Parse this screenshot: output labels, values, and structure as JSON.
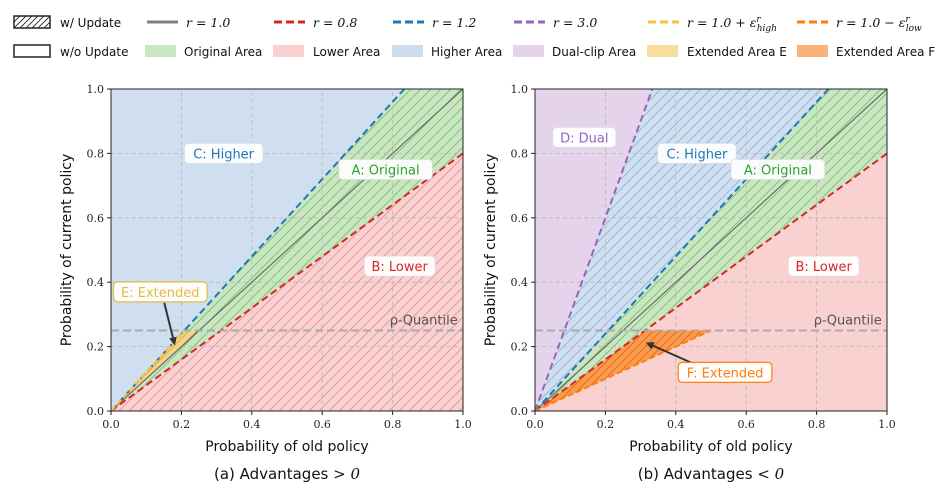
{
  "chart_data": {
    "type": "area",
    "legend": {
      "position": "top",
      "row1": [
        {
          "key": "w_update",
          "label": "w/ Update"
        },
        {
          "key": "r10",
          "label": "r = 1.0",
          "color": "#808080"
        },
        {
          "key": "r08",
          "label": "r = 0.8",
          "color": "#d62728"
        },
        {
          "key": "r12",
          "label": "r = 1.2",
          "color": "#1f77b4"
        },
        {
          "key": "r30",
          "label": "r = 3.0",
          "color": "#9467bd"
        },
        {
          "key": "rhigh",
          "label": "r = 1.0 + ε",
          "sup": "r",
          "sub": "high",
          "color": "#f5c342"
        },
        {
          "key": "rlow",
          "label": "r = 1.0 − ε",
          "sup": "r",
          "sub": "low",
          "color": "#ff7f0e"
        }
      ],
      "row2": [
        {
          "key": "wo_update",
          "label": "w/o Update"
        },
        {
          "key": "orig",
          "label": "Original Area",
          "color": "#c8e6c0"
        },
        {
          "key": "lower",
          "label": "Lower Area",
          "color": "#f9cfcf"
        },
        {
          "key": "higher",
          "label": "Higher Area",
          "color": "#cddcec"
        },
        {
          "key": "dual",
          "label": "Dual-clip Area",
          "color": "#e4d3ea"
        },
        {
          "key": "extE",
          "label": "Extended Area E",
          "color": "#f6df9a"
        },
        {
          "key": "extF",
          "label": "Extended Area F",
          "color": "#f9b27a"
        }
      ]
    },
    "panels": [
      {
        "title": "(a) Advantages > 0",
        "title_text": "(a) Advantages",
        "title_op": ">",
        "title_val": "0",
        "xlabel": "Probability of old policy",
        "ylabel": "Probability of current policy",
        "xlim": [
          0,
          1
        ],
        "ylim": [
          0,
          1
        ],
        "xticks": [
          0,
          0.2,
          0.4,
          0.6,
          0.8,
          1.0
        ],
        "yticks": [
          0,
          0.2,
          0.4,
          0.6,
          0.8,
          1.0
        ],
        "tick_labels": [
          "0.0",
          "0.2",
          "0.4",
          "0.6",
          "0.8",
          "1.0"
        ],
        "quantile_y": 0.25,
        "quantile_label": "ρ-Quantile",
        "lines": [
          {
            "r": 1.0,
            "style": "solid",
            "color": "#6b6b6b"
          },
          {
            "r": 1.2,
            "style": "dashed",
            "color": "#1f77b4"
          },
          {
            "r": 0.8,
            "style": "dashed",
            "color": "#d62728"
          }
        ],
        "regions": [
          {
            "id": "higher",
            "label": "C: Higher",
            "hatch": false,
            "label_pos": [
              0.32,
              0.8
            ],
            "label_color": "#1f77b4"
          },
          {
            "id": "original",
            "label": "A: Original",
            "hatch": true,
            "label_pos": [
              0.78,
              0.75
            ],
            "label_color": "#2ca02c"
          },
          {
            "id": "lower",
            "label": "B: Lower",
            "hatch": true,
            "label_pos": [
              0.82,
              0.45
            ],
            "label_color": "#d62728"
          },
          {
            "id": "extended",
            "label": "E: Extended",
            "hatch": true,
            "label_pos": [
              0.14,
              0.37
            ],
            "label_color": "#e8b93a",
            "arrow_to": [
              0.18,
              0.21
            ]
          }
        ],
        "extended_clip": {
          "r": 1.2,
          "y_max": 0.25
        }
      },
      {
        "title": "(b) Advantages < 0",
        "title_text": "(b) Advantages",
        "title_op": "<",
        "title_val": "0",
        "xlabel": "Probability of old policy",
        "ylabel": "Probability of current policy",
        "xlim": [
          0,
          1
        ],
        "ylim": [
          0,
          1
        ],
        "xticks": [
          0,
          0.2,
          0.4,
          0.6,
          0.8,
          1.0
        ],
        "yticks": [
          0,
          0.2,
          0.4,
          0.6,
          0.8,
          1.0
        ],
        "tick_labels": [
          "0.0",
          "0.2",
          "0.4",
          "0.6",
          "0.8",
          "1.0"
        ],
        "quantile_y": 0.25,
        "quantile_label": "ρ-Quantile",
        "lines": [
          {
            "r": 1.0,
            "style": "solid",
            "color": "#6b6b6b"
          },
          {
            "r": 1.2,
            "style": "dashed",
            "color": "#1f77b4"
          },
          {
            "r": 0.8,
            "style": "dashed",
            "color": "#d62728"
          },
          {
            "r": 3.0,
            "style": "dashed",
            "color": "#9467bd"
          }
        ],
        "regions": [
          {
            "id": "dual",
            "label": "D: Dual",
            "hatch": false,
            "label_pos": [
              0.14,
              0.85
            ],
            "label_color": "#9467bd"
          },
          {
            "id": "higher",
            "label": "C: Higher",
            "hatch": true,
            "label_pos": [
              0.46,
              0.8
            ],
            "label_color": "#1f77b4"
          },
          {
            "id": "original",
            "label": "A: Original",
            "hatch": true,
            "label_pos": [
              0.69,
              0.75
            ],
            "label_color": "#2ca02c"
          },
          {
            "id": "lower",
            "label": "B: Lower",
            "hatch": false,
            "label_pos": [
              0.82,
              0.45
            ],
            "label_color": "#d62728"
          },
          {
            "id": "extended",
            "label": "F: Extended",
            "hatch": true,
            "label_pos": [
              0.54,
              0.12
            ],
            "label_color": "#ff7f0e",
            "arrow_to": [
              0.32,
              0.21
            ]
          }
        ],
        "extended_clip": {
          "r": 0.5,
          "y_max": 0.25
        }
      }
    ]
  },
  "colors": {
    "original_fill": "#c8e6c0",
    "lower_fill": "#f9d1d1",
    "higher_fill": "#d0dff0",
    "dual_fill": "#e4d3ea",
    "extE_fill": "#f3d488",
    "extF_fill": "#fb9a4c",
    "quantile": "#aaaaaa"
  }
}
